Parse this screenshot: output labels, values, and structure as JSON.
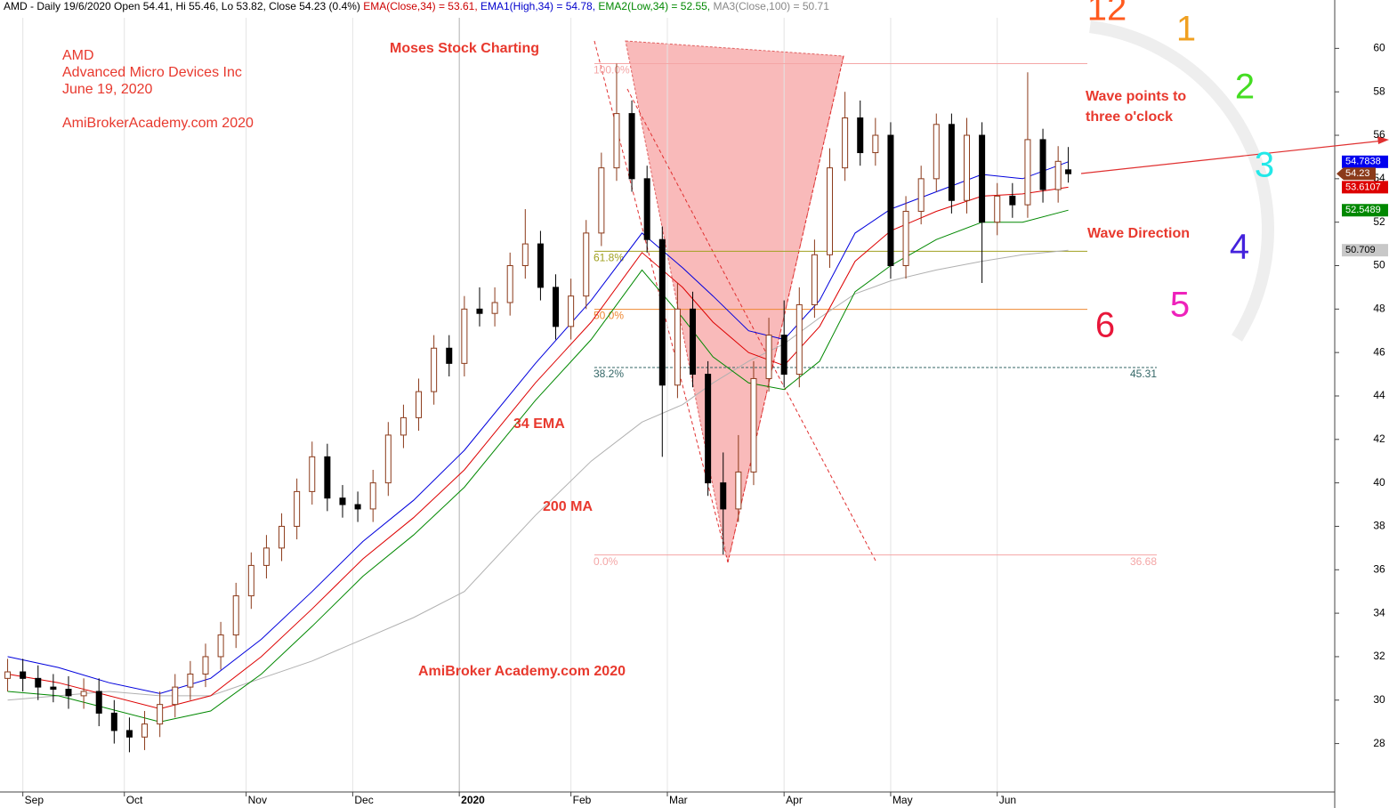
{
  "chart_data": {
    "type": "candlestick",
    "header": [
      {
        "text": "AMD - Daily 19/6/2020 Open 54.41, Hi 55.46, Lo 53.82, Close 54.23 (0.4%) ",
        "color": "#000000"
      },
      {
        "text": "EMA(Close,34) = 53.61, ",
        "color": "#cc0000"
      },
      {
        "text": "EMA1(High,34) = 54.78, ",
        "color": "#0000cc"
      },
      {
        "text": "EMA2(Low,34) = 52.55, ",
        "color": "#008800"
      },
      {
        "text": "MA3(Close,100) = 50.71",
        "color": "#888888"
      }
    ],
    "annotations": [
      "AMD",
      "Advanced Micro Devices Inc",
      "June 19, 2020",
      "AmiBrokerAcademy.com  2020",
      "Moses Stock Charting",
      "Wave points to",
      "three o'clock",
      "Wave Direction",
      "34 EMA",
      "200 MA",
      "AmiBroker Academy.com  2020"
    ],
    "clock": [
      {
        "label": "12",
        "color": "#ff5a1e"
      },
      {
        "label": "1",
        "color": "#f0a020"
      },
      {
        "label": "2",
        "color": "#44dd22"
      },
      {
        "label": "3",
        "color": "#22e8e8"
      },
      {
        "label": "4",
        "color": "#4422dd"
      },
      {
        "label": "5",
        "color": "#ee22bb"
      },
      {
        "label": "6",
        "color": "#e8173a"
      }
    ],
    "xlim": [
      -1.5,
      261.5
    ],
    "xticks": [
      {
        "value": 3,
        "label": "Sep"
      },
      {
        "value": 23,
        "label": "Oct"
      },
      {
        "value": 47,
        "label": "Nov"
      },
      {
        "value": 68,
        "label": "Dec"
      },
      {
        "value": 89,
        "label": "2020"
      },
      {
        "value": 111,
        "label": "Feb"
      },
      {
        "value": 130,
        "label": "Mar"
      },
      {
        "value": 153,
        "label": "Apr"
      },
      {
        "value": 174,
        "label": "May"
      },
      {
        "value": 195,
        "label": "Jun"
      }
    ],
    "ylim": [
      27.0,
      61.08
    ],
    "yticks": [
      28,
      30,
      32,
      34,
      36,
      38,
      40,
      42,
      44,
      46,
      48,
      50,
      52,
      54,
      56,
      58,
      60
    ],
    "candles": {
      "up_color": "#8b3a1a",
      "down_color": "#000000",
      "close_label": "54.23",
      "x": [
        0,
        3,
        6,
        9,
        12,
        15,
        18,
        21,
        24,
        27,
        30,
        33,
        36,
        39,
        42,
        45,
        48,
        51,
        54,
        57,
        60,
        63,
        66,
        69,
        72,
        75,
        78,
        81,
        84,
        87,
        90,
        93,
        96,
        99,
        102,
        105,
        108,
        111,
        114,
        117,
        120,
        123,
        126,
        129,
        132,
        135,
        138,
        141,
        144,
        147,
        150,
        153,
        156,
        159,
        162,
        165,
        168,
        171,
        174,
        177,
        180,
        183,
        186,
        189,
        192,
        195,
        198,
        201,
        204,
        207,
        209
      ],
      "open": [
        31.0,
        31.3,
        31.0,
        30.6,
        30.5,
        30.2,
        30.4,
        29.4,
        28.6,
        28.3,
        28.9,
        29.8,
        30.6,
        31.2,
        32.0,
        33.0,
        34.8,
        36.2,
        37.0,
        38.0,
        39.6,
        41.2,
        39.3,
        39.0,
        38.8,
        40.0,
        42.2,
        43.0,
        44.2,
        46.2,
        45.5,
        48.0,
        47.8,
        48.3,
        50.0,
        51.0,
        49.0,
        47.2,
        48.6,
        51.5,
        54.5,
        57.0,
        54.0,
        51.2,
        44.5,
        48.0,
        45.0,
        40.0,
        38.8,
        40.5,
        44.8,
        46.8,
        45.0,
        48.2,
        50.5,
        54.5,
        56.8,
        55.2,
        56.0,
        50.0,
        52.5,
        54.0,
        56.5,
        53.0,
        56.0,
        52.0,
        53.2,
        52.8,
        55.8,
        53.5,
        54.41
      ],
      "high": [
        31.9,
        31.9,
        31.6,
        31.2,
        31.1,
        31.0,
        31.0,
        30.0,
        29.2,
        29.5,
        30.4,
        31.2,
        31.8,
        32.6,
        33.6,
        35.4,
        36.8,
        37.6,
        38.6,
        40.2,
        41.9,
        41.8,
        39.9,
        39.6,
        40.6,
        42.8,
        43.6,
        44.8,
        46.8,
        46.8,
        48.6,
        49.0,
        49.0,
        50.6,
        52.6,
        51.6,
        49.6,
        49.4,
        52.1,
        55.2,
        59.3,
        57.6,
        54.6,
        51.8,
        49.2,
        48.8,
        45.6,
        41.4,
        42.2,
        45.6,
        47.6,
        48.4,
        49.0,
        51.2,
        55.4,
        58.0,
        57.6,
        56.8,
        56.6,
        53.2,
        54.6,
        57.0,
        57.0,
        56.8,
        56.6,
        53.8,
        53.8,
        58.9,
        56.3,
        55.5,
        55.46
      ],
      "low": [
        30.4,
        30.4,
        30.0,
        29.9,
        29.6,
        29.6,
        28.8,
        28.0,
        27.6,
        27.7,
        28.3,
        29.2,
        30.0,
        30.6,
        31.4,
        32.4,
        34.2,
        35.6,
        36.4,
        37.4,
        39.0,
        38.7,
        38.4,
        38.2,
        38.2,
        39.4,
        41.6,
        42.4,
        43.6,
        44.9,
        44.9,
        47.2,
        47.2,
        47.7,
        49.4,
        48.4,
        46.6,
        46.6,
        48.0,
        50.9,
        53.9,
        53.4,
        50.6,
        41.2,
        43.9,
        44.4,
        39.4,
        36.7,
        38.2,
        39.9,
        44.2,
        44.4,
        44.4,
        47.6,
        49.9,
        53.9,
        54.6,
        54.6,
        49.4,
        49.4,
        51.9,
        53.4,
        52.4,
        52.4,
        49.2,
        51.4,
        52.2,
        52.2,
        52.9,
        52.9,
        53.82
      ],
      "close": [
        31.3,
        31.0,
        30.6,
        30.5,
        30.2,
        30.4,
        29.4,
        28.6,
        28.3,
        28.9,
        29.8,
        30.6,
        31.2,
        32.0,
        33.0,
        34.8,
        36.2,
        37.0,
        38.0,
        39.6,
        41.2,
        39.3,
        39.0,
        38.8,
        40.0,
        42.2,
        43.0,
        44.2,
        46.2,
        45.5,
        48.0,
        47.8,
        48.3,
        50.0,
        51.0,
        49.0,
        47.2,
        48.6,
        51.5,
        54.5,
        57.0,
        54.0,
        51.2,
        44.5,
        48.0,
        45.0,
        40.0,
        38.8,
        40.5,
        44.8,
        46.8,
        45.0,
        48.2,
        50.5,
        54.5,
        56.8,
        55.2,
        56.0,
        50.0,
        52.5,
        54.0,
        56.5,
        53.0,
        56.0,
        52.0,
        53.2,
        52.8,
        55.8,
        53.5,
        54.8,
        54.23
      ]
    },
    "lines_x": [
      0,
      10,
      20,
      30,
      40,
      50,
      60,
      70,
      80,
      90,
      104,
      115,
      125,
      133,
      139,
      146,
      153,
      160,
      167,
      174,
      183,
      192,
      200,
      209
    ],
    "lines": [
      {
        "name": "MA3(Close,100)",
        "color": "#b0b0b0",
        "box_text": "#000000",
        "box_color": "#c8c8c8",
        "last_label": "50.709",
        "values": [
          30.0,
          30.2,
          30.4,
          30.2,
          30.2,
          31.0,
          31.8,
          32.8,
          33.8,
          35.0,
          38.5,
          41.0,
          42.8,
          43.6,
          44.6,
          45.6,
          46.4,
          47.6,
          48.7,
          49.3,
          49.8,
          50.2,
          50.5,
          50.71
        ]
      },
      {
        "name": "EMA2(Low,34)",
        "color": "#008800",
        "box_text": "#ffffff",
        "box_color": "#008800",
        "last_label": "52.5489",
        "values": [
          30.4,
          30.2,
          29.6,
          29.0,
          29.5,
          31.2,
          33.4,
          35.7,
          37.6,
          39.8,
          43.8,
          46.6,
          49.8,
          47.6,
          45.8,
          44.6,
          44.3,
          45.6,
          48.8,
          50.0,
          51.2,
          52.0,
          52.0,
          52.55
        ]
      },
      {
        "name": "EMA(Close,34)",
        "color": "#dd0000",
        "box_text": "#ffffff",
        "box_color": "#dd0000",
        "last_label": "53.6107",
        "values": [
          31.2,
          30.8,
          30.2,
          29.6,
          30.2,
          32.0,
          34.2,
          36.5,
          38.4,
          40.6,
          44.6,
          47.4,
          50.6,
          49.0,
          47.4,
          46.0,
          45.4,
          47.2,
          50.2,
          51.6,
          52.5,
          53.2,
          53.3,
          53.61
        ]
      },
      {
        "name": "EMA1(High,34)",
        "color": "#0000dd",
        "box_text": "#ffffff",
        "box_color": "#0000ee",
        "last_label": "54.7838",
        "values": [
          32.0,
          31.5,
          30.8,
          30.3,
          31.0,
          32.8,
          35.0,
          37.3,
          39.2,
          41.5,
          45.5,
          48.4,
          51.5,
          49.9,
          48.6,
          47.0,
          46.6,
          48.4,
          51.5,
          52.6,
          53.4,
          54.2,
          54.0,
          54.78
        ]
      }
    ],
    "fib": [
      {
        "label": "100.0%",
        "value": 59.3,
        "color": "#f4a6a6",
        "end": 0
      },
      {
        "label": "61.8%",
        "value": 50.66,
        "color": "#a0a020",
        "end": 0
      },
      {
        "label": "50.0%",
        "value": 47.99,
        "color": "#ee8833",
        "end": 0
      },
      {
        "label": "38.2%",
        "value": 45.31,
        "color": "#336666",
        "end": 1,
        "right_label": "45.31"
      },
      {
        "label": "0.0%",
        "value": 36.68,
        "color": "#f4a6a6",
        "end": 1,
        "right_label": "36.68"
      }
    ]
  }
}
